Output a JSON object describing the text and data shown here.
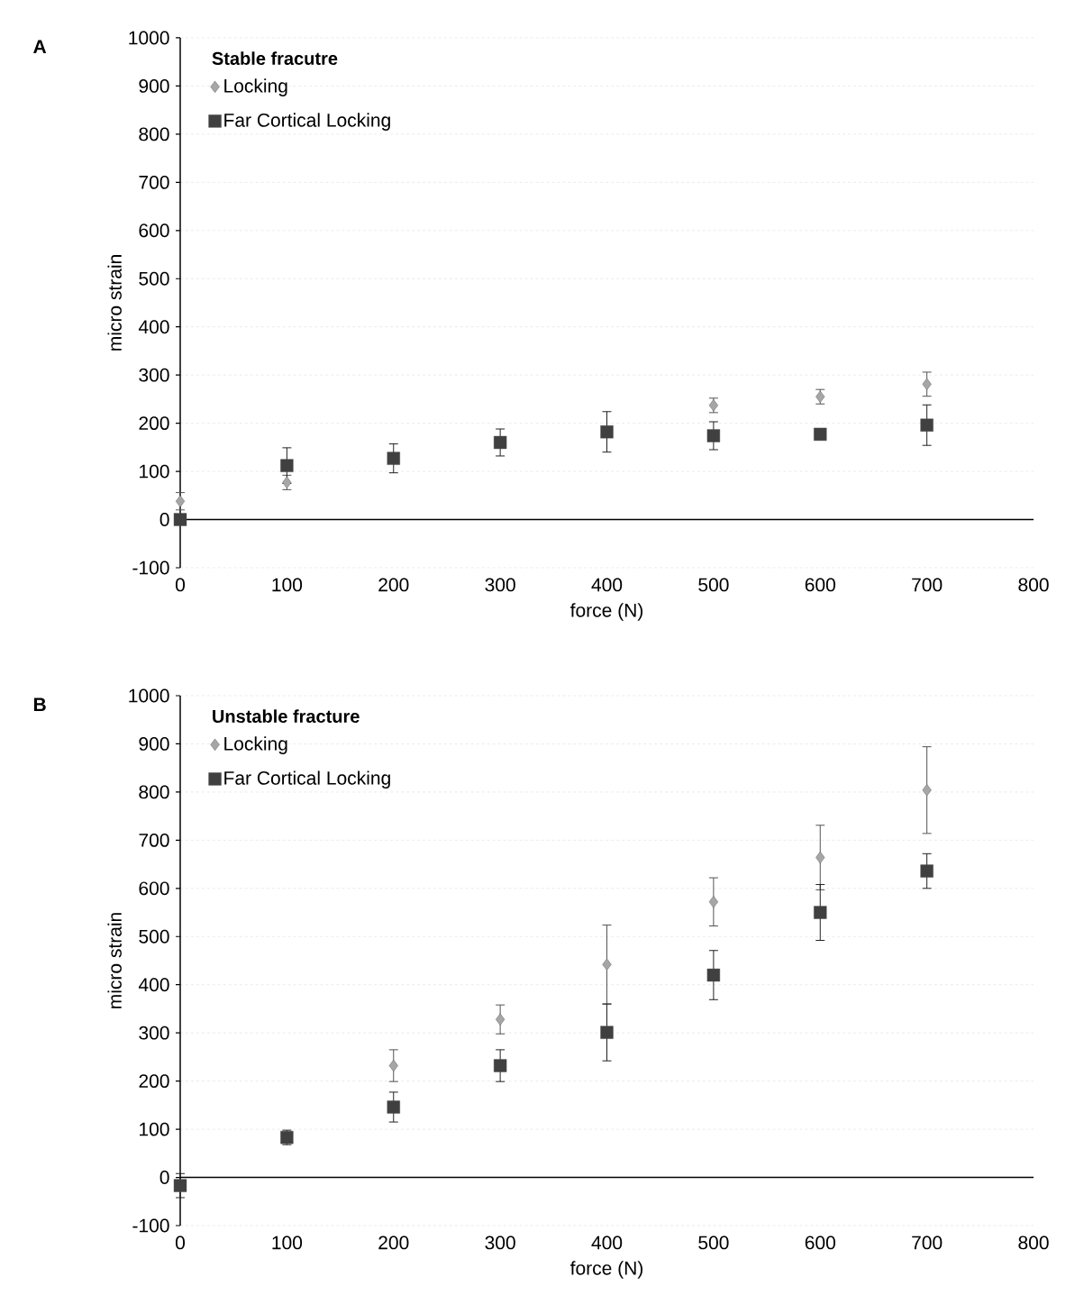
{
  "chart_data": [
    {
      "type": "scatter",
      "title": "Stable fracutre",
      "xlabel": "force (N)",
      "ylabel": "micro strain",
      "annotations": [
        "A"
      ],
      "x": [
        0,
        100,
        200,
        300,
        400,
        500,
        600,
        700
      ],
      "series": [
        {
          "name": "Locking",
          "color": "#a6a6a6",
          "marker": "diamond",
          "values": [
            38,
            77,
            null,
            null,
            null,
            237,
            255,
            281
          ],
          "errors": [
            18,
            15,
            null,
            null,
            null,
            15,
            15,
            25
          ]
        },
        {
          "name": "Far Cortical Locking",
          "color": "#404040",
          "marker": "square",
          "values": [
            0,
            112,
            127,
            160,
            182,
            174,
            177,
            196
          ],
          "errors": [
            5,
            37,
            30,
            28,
            42,
            29,
            10,
            42
          ]
        }
      ],
      "xlim": [
        0,
        800
      ],
      "xticks": [
        0,
        100,
        200,
        300,
        400,
        500,
        600,
        700,
        800
      ],
      "ylim": [
        -100,
        1000
      ],
      "yticks": [
        -100,
        0,
        100,
        200,
        300,
        400,
        500,
        600,
        700,
        800,
        900,
        1000
      ],
      "grid": "y",
      "legend": "top left"
    },
    {
      "type": "scatter",
      "title": "Unstable fracture",
      "xlabel": "force (N)",
      "ylabel": "micro strain",
      "annotations": [
        "B"
      ],
      "x": [
        0,
        100,
        200,
        300,
        400,
        500,
        600,
        700
      ],
      "series": [
        {
          "name": "Locking",
          "color": "#a6a6a6",
          "marker": "diamond",
          "values": [
            null,
            null,
            232,
            328,
            442,
            572,
            664,
            804
          ],
          "errors": [
            null,
            null,
            33,
            30,
            82,
            50,
            67,
            90
          ]
        },
        {
          "name": "Far Cortical Locking",
          "color": "#404040",
          "marker": "square",
          "values": [
            -17,
            83,
            146,
            232,
            301,
            420,
            550,
            636
          ],
          "errors": [
            25,
            15,
            31,
            33,
            59,
            51,
            58,
            36
          ]
        }
      ],
      "xlim": [
        0,
        800
      ],
      "xticks": [
        0,
        100,
        200,
        300,
        400,
        500,
        600,
        700,
        800
      ],
      "ylim": [
        -100,
        1000
      ],
      "yticks": [
        -100,
        0,
        100,
        200,
        300,
        400,
        500,
        600,
        700,
        800,
        900,
        1000
      ],
      "grid": "y",
      "legend": "top left"
    }
  ]
}
